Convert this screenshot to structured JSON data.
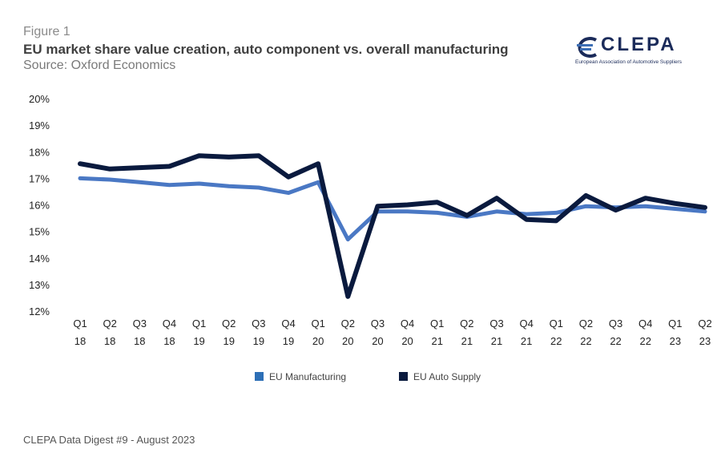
{
  "header": {
    "figure_label": "Figure 1",
    "title": "EU market share value creation, auto component vs. overall manufacturing",
    "source": "Source: Oxford Economics"
  },
  "logo": {
    "name": "CLEPA",
    "subtitle": "European Association of Automotive Suppliers"
  },
  "footer": {
    "text": "CLEPA Data Digest #9 - August 2023"
  },
  "colors": {
    "manufacturing": "#4a78c4",
    "auto_supply": "#0a1a3e",
    "logo_accent": "#3d6fb5"
  },
  "chart_data": {
    "type": "line",
    "title": "EU market share value creation, auto component vs. overall manufacturing",
    "xlabel": "",
    "ylabel": "",
    "ylim": [
      12,
      20
    ],
    "y_ticks": [
      "20%",
      "19%",
      "18%",
      "17%",
      "16%",
      "15%",
      "14%",
      "13%",
      "12%"
    ],
    "y_tick_values": [
      20,
      19,
      18,
      17,
      16,
      15,
      14,
      13,
      12
    ],
    "categories": [
      {
        "q": "Q1",
        "y": "18"
      },
      {
        "q": "Q2",
        "y": "18"
      },
      {
        "q": "Q3",
        "y": "18"
      },
      {
        "q": "Q4",
        "y": "18"
      },
      {
        "q": "Q1",
        "y": "19"
      },
      {
        "q": "Q2",
        "y": "19"
      },
      {
        "q": "Q3",
        "y": "19"
      },
      {
        "q": "Q4",
        "y": "19"
      },
      {
        "q": "Q1",
        "y": "20"
      },
      {
        "q": "Q2",
        "y": "20"
      },
      {
        "q": "Q3",
        "y": "20"
      },
      {
        "q": "Q4",
        "y": "20"
      },
      {
        "q": "Q1",
        "y": "21"
      },
      {
        "q": "Q2",
        "y": "21"
      },
      {
        "q": "Q3",
        "y": "21"
      },
      {
        "q": "Q4",
        "y": "21"
      },
      {
        "q": "Q1",
        "y": "22"
      },
      {
        "q": "Q2",
        "y": "22"
      },
      {
        "q": "Q3",
        "y": "22"
      },
      {
        "q": "Q4",
        "y": "22"
      },
      {
        "q": "Q1",
        "y": "23"
      },
      {
        "q": "Q2",
        "y": "23"
      }
    ],
    "series": [
      {
        "name": "EU Manufacturing",
        "color": "#4a78c4",
        "values": [
          17.0,
          16.95,
          16.85,
          16.75,
          16.8,
          16.7,
          16.65,
          16.45,
          16.85,
          14.7,
          15.75,
          15.75,
          15.7,
          15.55,
          15.75,
          15.65,
          15.7,
          15.95,
          15.9,
          15.95,
          15.85,
          15.75
        ]
      },
      {
        "name": "EU Auto Supply",
        "color": "#0a1a3e",
        "values": [
          17.55,
          17.35,
          17.4,
          17.45,
          17.85,
          17.8,
          17.85,
          17.05,
          17.55,
          12.55,
          15.95,
          16.0,
          16.1,
          15.6,
          16.25,
          15.45,
          15.4,
          16.35,
          15.8,
          16.25,
          16.05,
          15.9
        ]
      }
    ],
    "legend_position": "bottom-center",
    "grid": false
  }
}
